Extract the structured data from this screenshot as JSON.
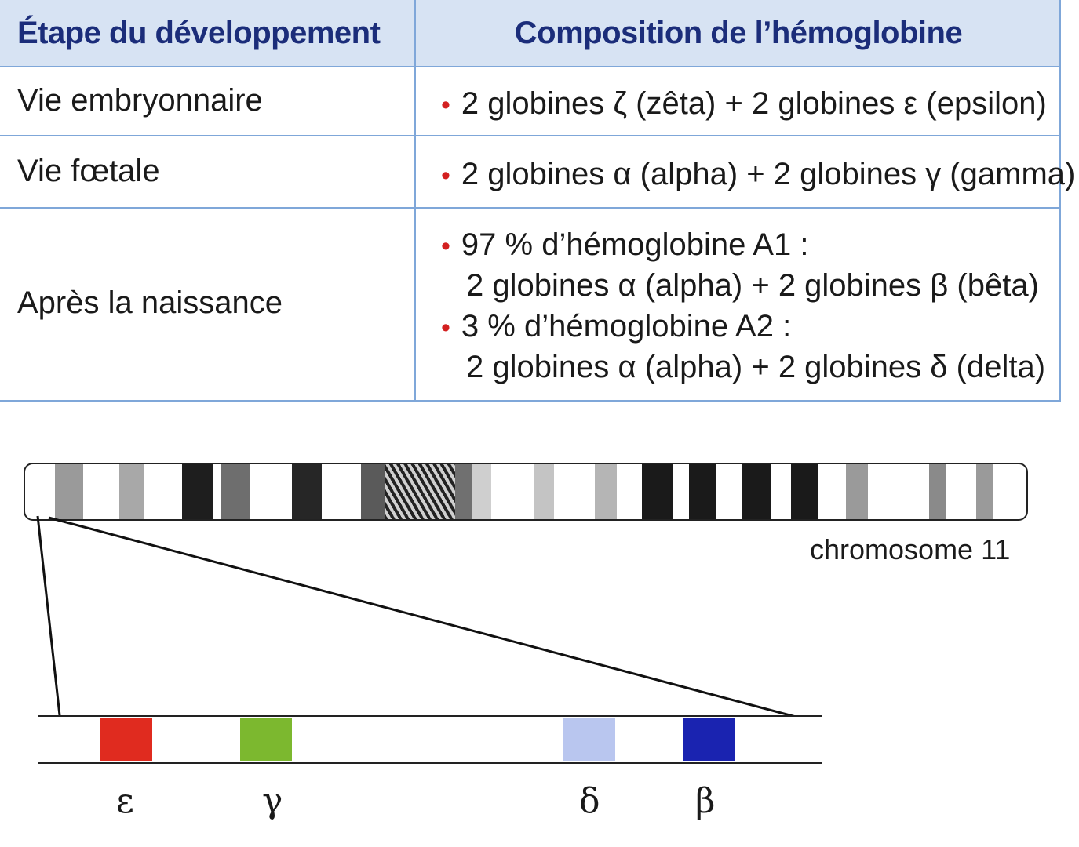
{
  "table": {
    "headers": [
      "Étape du développement",
      "Composition de l’hémoglobine"
    ],
    "rows": [
      {
        "stage": "Vie embryonnaire",
        "lines": [
          "2 globines ζ (zêta) + 2 globines ε (epsilon)"
        ]
      },
      {
        "stage": "Vie fœtale",
        "lines": [
          "2 globines α (alpha) + 2 globines γ (gamma)"
        ]
      },
      {
        "stage": "Après la naissance",
        "lines": [
          "97 % d’hémoglobine A1 :",
          "2 globines α (alpha) + 2 globines β (bêta)",
          "3 % d’hémoglobine A2 :",
          "2 globines α (alpha) + 2 globines δ (delta)"
        ]
      }
    ],
    "bullet": "•"
  },
  "diagram": {
    "chromosome_label": "chromosome 11",
    "genes": [
      {
        "symbol": "ε",
        "color": "#e02b1f"
      },
      {
        "symbol": "γ",
        "color": "#7cb82f"
      },
      {
        "symbol": "δ",
        "color": "#b9c6ef"
      },
      {
        "symbol": "β",
        "color": "#1a23b0"
      }
    ]
  },
  "colors": {
    "header_bg": "#d7e3f3",
    "header_text": "#1b2d7a",
    "rule": "#7fa7d9",
    "bullet": "#d32020"
  }
}
